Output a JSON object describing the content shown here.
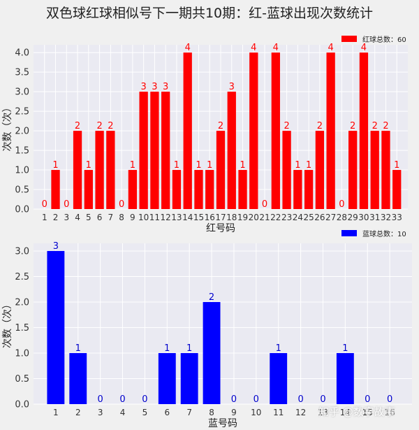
{
  "title": "双色球红球相似号下一期共10期：红-蓝球出现次数统计",
  "watermark": "知乎 @数字故事",
  "chart_data": [
    {
      "type": "bar",
      "color": "#ff0000",
      "label_color": "#ff0000",
      "legend": "红球总数：60",
      "legend_position": "top-right",
      "xlabel": "红号码",
      "ylabel": "次数（次）",
      "ylim": [
        0,
        4.2
      ],
      "yticks": [
        "0.0",
        "0.5",
        "1.0",
        "1.5",
        "2.0",
        "2.5",
        "3.0",
        "3.5",
        "4.0"
      ],
      "grid": true,
      "categories": [
        "1",
        "2",
        "3",
        "4",
        "5",
        "6",
        "7",
        "8",
        "9",
        "10",
        "11",
        "12",
        "13",
        "14",
        "15",
        "16",
        "17",
        "18",
        "19",
        "20",
        "21",
        "22",
        "23",
        "24",
        "25",
        "26",
        "27",
        "28",
        "29",
        "30",
        "31",
        "32",
        "33"
      ],
      "values": [
        0,
        1,
        0,
        2,
        1,
        2,
        2,
        0,
        1,
        3,
        3,
        3,
        1,
        4,
        1,
        1,
        2,
        3,
        1,
        4,
        0,
        4,
        2,
        1,
        1,
        2,
        4,
        0,
        2,
        4,
        2,
        2,
        1
      ]
    },
    {
      "type": "bar",
      "color": "#0000ff",
      "label_color": "#0000cc",
      "legend": "蓝球总数：10",
      "legend_position": "top-right",
      "xlabel": "蓝号码",
      "ylabel": "次数（次）",
      "ylim": [
        0,
        3.15
      ],
      "yticks": [
        "0.0",
        "0.5",
        "1.0",
        "1.5",
        "2.0",
        "2.5",
        "3.0"
      ],
      "grid": true,
      "categories": [
        "1",
        "2",
        "3",
        "4",
        "5",
        "6",
        "7",
        "8",
        "9",
        "10",
        "11",
        "12",
        "13",
        "14",
        "15",
        "16"
      ],
      "values": [
        3,
        1,
        0,
        0,
        0,
        1,
        1,
        2,
        0,
        0,
        1,
        0,
        0,
        1,
        0,
        0
      ]
    }
  ]
}
